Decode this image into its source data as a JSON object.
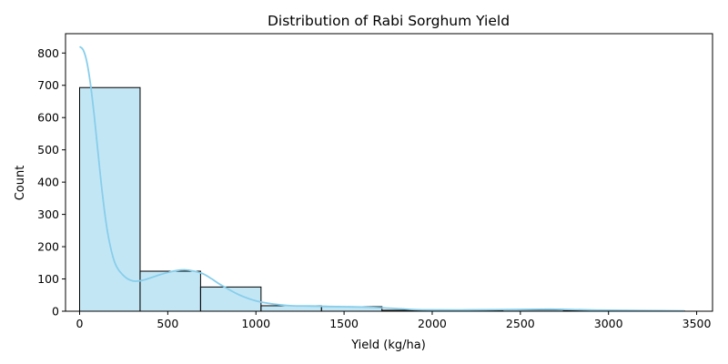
{
  "chart_data": {
    "type": "bar",
    "title": "Distribution of Rabi Sorghum Yield",
    "xlabel": "Yield (kg/ha)",
    "ylabel": "Count",
    "xlim": [
      -80,
      3590
    ],
    "ylim": [
      0,
      860
    ],
    "x_ticks": [
      0,
      500,
      1000,
      1500,
      2000,
      2500,
      3000,
      3500
    ],
    "y_ticks": [
      0,
      100,
      200,
      300,
      400,
      500,
      600,
      700,
      800
    ],
    "bins": [
      {
        "start": 0,
        "end": 343,
        "count": 693
      },
      {
        "start": 343,
        "end": 686,
        "count": 124
      },
      {
        "start": 686,
        "end": 1029,
        "count": 75
      },
      {
        "start": 1029,
        "end": 1372,
        "count": 17
      },
      {
        "start": 1372,
        "end": 1715,
        "count": 14
      },
      {
        "start": 1715,
        "end": 2058,
        "count": 3
      },
      {
        "start": 2058,
        "end": 2401,
        "count": 2
      },
      {
        "start": 2401,
        "end": 2744,
        "count": 4
      },
      {
        "start": 2744,
        "end": 3087,
        "count": 2
      },
      {
        "start": 3087,
        "end": 3430,
        "count": 1
      }
    ],
    "kde": {
      "x": [
        0,
        20,
        40,
        60,
        80,
        100,
        130,
        160,
        200,
        250,
        300,
        350,
        400,
        450,
        500,
        550,
        600,
        650,
        700,
        750,
        800,
        900,
        1000,
        1100,
        1200,
        1300,
        1400,
        1500,
        1600,
        1700,
        1800,
        1900,
        2000,
        2200,
        2400,
        2600,
        2700,
        2800,
        3000,
        3200,
        3430
      ],
      "y": [
        820,
        810,
        775,
        710,
        620,
        515,
        360,
        240,
        150,
        110,
        94,
        95,
        103,
        112,
        120,
        126,
        128,
        124,
        116,
        100,
        82,
        52,
        32,
        22,
        17,
        16,
        15,
        14,
        13,
        11,
        8,
        5,
        4,
        4,
        5,
        6,
        6,
        5,
        3,
        2,
        1
      ]
    },
    "colors": {
      "bar_fill": "#87ceeb",
      "bar_edge": "#000000",
      "kde_line": "#87ceeb"
    },
    "grid": false,
    "legend": "none"
  }
}
